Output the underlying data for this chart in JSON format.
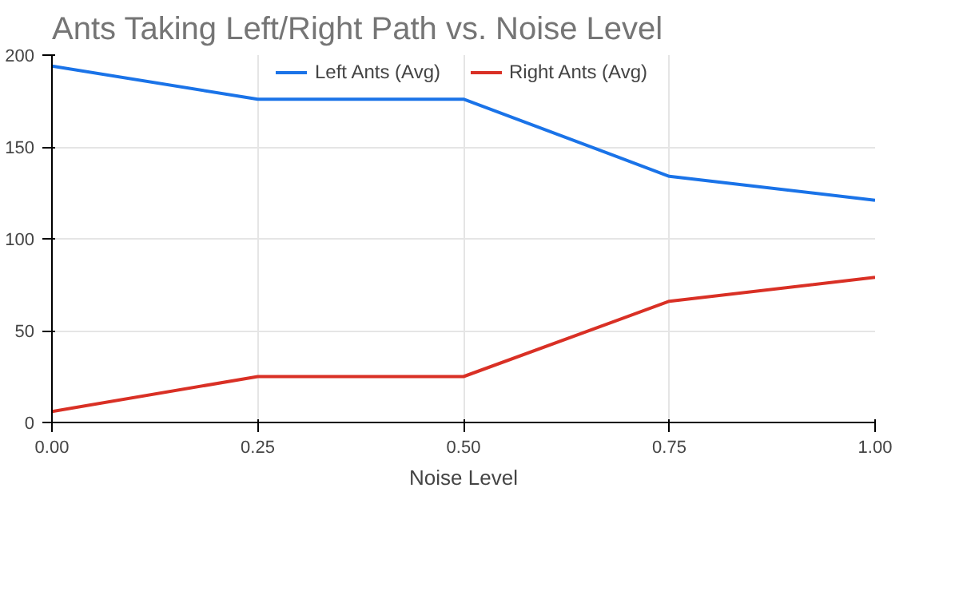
{
  "chart_data": {
    "type": "line",
    "title": "Ants Taking Left/Right Path vs. Noise Level",
    "xlabel": "Noise Level",
    "x": [
      0,
      0.25,
      0.5,
      0.75,
      1.0
    ],
    "series": [
      {
        "name": "Left Ants (Avg)",
        "color": "#1a73e8",
        "values": [
          194,
          176,
          176,
          134,
          121
        ]
      },
      {
        "name": "Right Ants (Avg)",
        "color": "#d93025",
        "values": [
          6,
          25,
          25,
          66,
          79
        ]
      }
    ],
    "xlim": [
      0,
      1
    ],
    "xticks": [
      {
        "value": 0,
        "label": "0.00"
      },
      {
        "value": 0.25,
        "label": "0.25"
      },
      {
        "value": 0.5,
        "label": "0.50"
      },
      {
        "value": 0.75,
        "label": "0.75"
      },
      {
        "value": 1,
        "label": "1.00"
      }
    ],
    "ylim": [
      0,
      200
    ],
    "yticks": [
      0,
      50,
      100,
      150,
      200
    ],
    "grid": true,
    "legend": "top",
    "marker": "none",
    "line_style": "solid"
  }
}
